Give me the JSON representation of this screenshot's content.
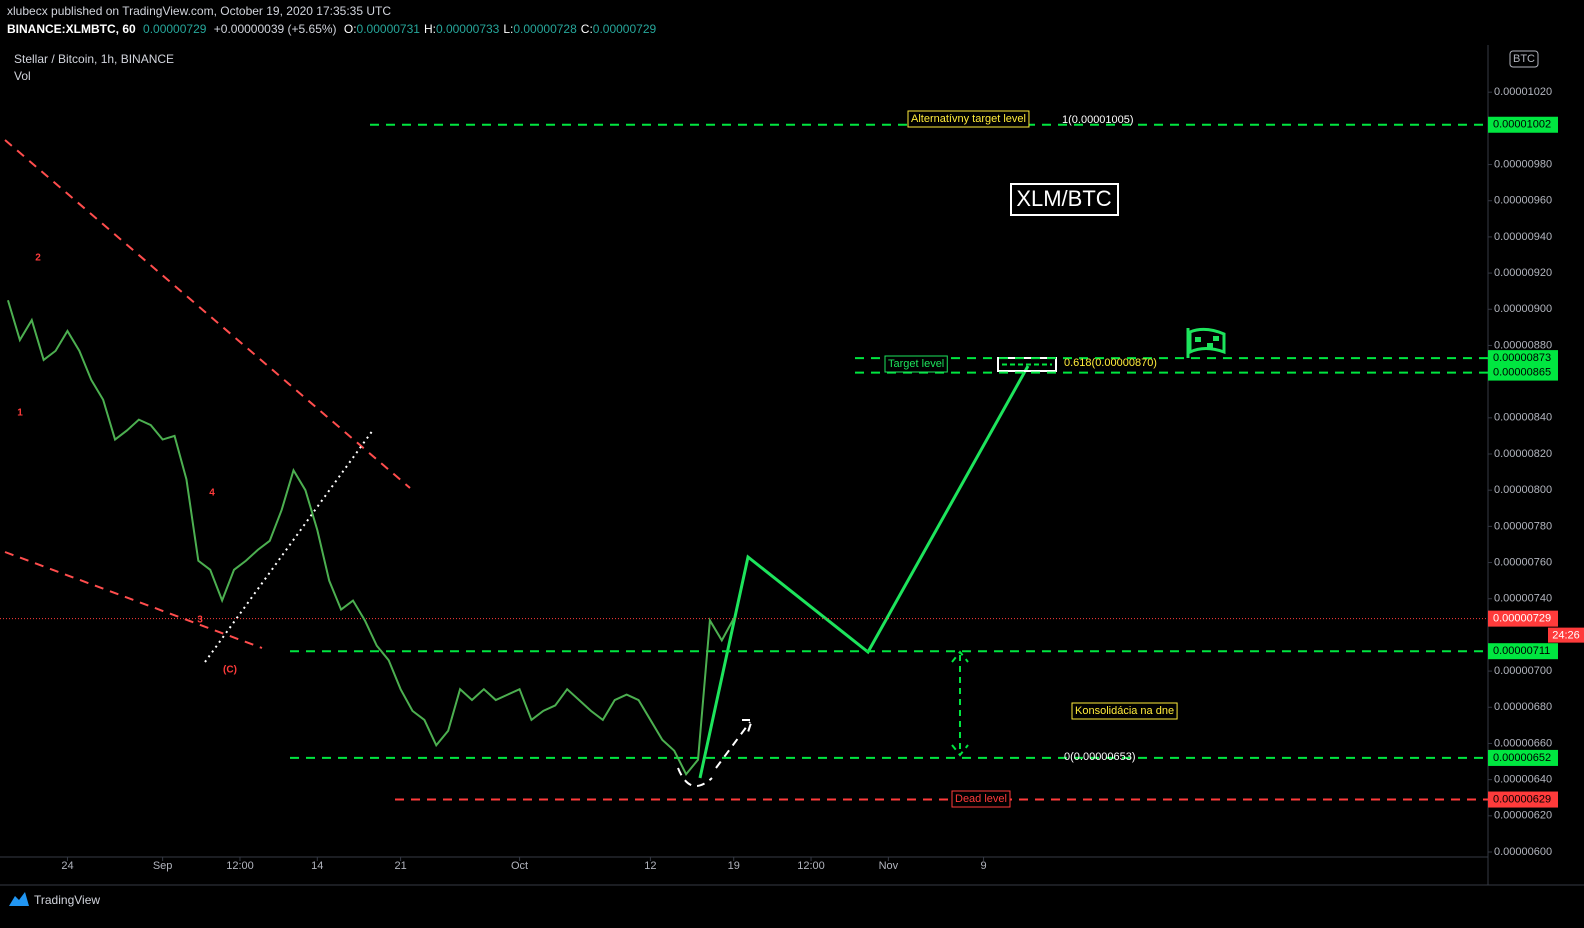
{
  "header": {
    "published": "xlubecx published on TradingView.com, October 19, 2020 17:35:35 UTC",
    "symbol": "BINANCE:XLMBTC, 60",
    "last": "0.00000729",
    "change": "+0.00000039 (+5.65%)",
    "ohlc": [
      {
        "label": "O:",
        "value": "0.00000731"
      },
      {
        "label": "H:",
        "value": "0.00000733"
      },
      {
        "label": "L:",
        "value": "0.00000728"
      },
      {
        "label": "C:",
        "value": "0.00000729"
      }
    ],
    "legend": "Stellar / Bitcoin, 1h, BINANCE",
    "volume": "Vol",
    "currency": "BTC",
    "brand": "TradingView"
  },
  "chart_data": {
    "type": "line",
    "color": "#4caf50",
    "x": [
      0,
      1,
      2,
      3,
      4,
      5,
      6,
      7,
      8,
      9,
      10,
      11,
      12,
      13,
      14,
      15,
      16,
      17,
      18,
      19,
      20,
      21,
      22,
      23,
      24,
      25,
      26,
      27,
      28,
      29,
      30,
      31,
      32,
      33,
      34,
      35,
      36,
      37,
      38,
      39,
      40,
      41,
      42,
      43,
      44,
      45,
      46,
      47,
      48,
      49,
      50,
      51,
      52,
      53,
      54,
      55,
      56,
      57,
      58,
      59,
      60,
      61
    ],
    "values": [
      9.05e-06,
      8.83e-06,
      8.94e-06,
      8.72e-06,
      8.77e-06,
      8.88e-06,
      8.77e-06,
      8.61e-06,
      8.5e-06,
      8.28e-06,
      8.33e-06,
      8.39e-06,
      8.36e-06,
      8.28e-06,
      8.3e-06,
      8.06e-06,
      7.61e-06,
      7.56e-06,
      7.39e-06,
      7.56e-06,
      7.61e-06,
      7.67e-06,
      7.72e-06,
      7.89e-06,
      8.11e-06,
      8e-06,
      7.78e-06,
      7.5e-06,
      7.34e-06,
      7.39e-06,
      7.28e-06,
      7.14e-06,
      7.06e-06,
      6.9e-06,
      6.78e-06,
      6.73e-06,
      6.59e-06,
      6.67e-06,
      6.9e-06,
      6.84e-06,
      6.9e-06,
      6.84e-06,
      6.87e-06,
      6.9e-06,
      6.73e-06,
      6.78e-06,
      6.81e-06,
      6.9e-06,
      6.84e-06,
      6.78e-06,
      6.73e-06,
      6.84e-06,
      6.87e-06,
      6.84e-06,
      6.73e-06,
      6.62e-06,
      6.56e-06,
      6.43e-06,
      6.51e-06,
      7.28e-06,
      7.17e-06,
      7.29e-06
    ],
    "xlim": [
      -0.67,
      124.4
    ],
    "xticks": [
      {
        "value": 5,
        "label": "24"
      },
      {
        "value": 13,
        "label": "Sep"
      },
      {
        "value": 19.5,
        "label": "12:00"
      },
      {
        "value": 26,
        "label": "14"
      },
      {
        "value": 33,
        "label": "21"
      },
      {
        "value": 43,
        "label": "Oct"
      },
      {
        "value": 54,
        "label": "12"
      },
      {
        "value": 61,
        "label": "19"
      },
      {
        "value": 67.5,
        "label": "12:00"
      },
      {
        "value": 74,
        "label": "Nov"
      },
      {
        "value": 82,
        "label": "9"
      }
    ],
    "ylim": [
      6e-06,
      1.04e-05
    ],
    "yticks": [
      {
        "value": 6e-06,
        "label": "0.00000600"
      },
      {
        "value": 6.2e-06,
        "label": "0.00000620"
      },
      {
        "value": 6.4e-06,
        "label": "0.00000640"
      },
      {
        "value": 6.6e-06,
        "label": "0.00000660"
      },
      {
        "value": 6.8e-06,
        "label": "0.00000680"
      },
      {
        "value": 7e-06,
        "label": "0.00000700"
      },
      {
        "value": 7.4e-06,
        "label": "0.00000740"
      },
      {
        "value": 7.6e-06,
        "label": "0.00000760"
      },
      {
        "value": 7.8e-06,
        "label": "0.00000780"
      },
      {
        "value": 8e-06,
        "label": "0.00000800"
      },
      {
        "value": 8.2e-06,
        "label": "0.00000820"
      },
      {
        "value": 8.4e-06,
        "label": "0.00000840"
      },
      {
        "value": 8.8e-06,
        "label": "0.00000880"
      },
      {
        "value": 9e-06,
        "label": "0.00000900"
      },
      {
        "value": 9.2e-06,
        "label": "0.00000920"
      },
      {
        "value": 9.4e-06,
        "label": "0.00000940"
      },
      {
        "value": 9.6e-06,
        "label": "0.00000960"
      },
      {
        "value": 9.8e-06,
        "label": "0.00000980"
      },
      {
        "value": 1.02e-05,
        "label": "0.00001020"
      }
    ],
    "levels": [
      {
        "value": 1.002e-05,
        "color": "#00e640"
      },
      {
        "value": 8.73e-06,
        "color": "#00e640"
      },
      {
        "value": 8.65e-06,
        "color": "#00e640"
      },
      {
        "value": 7.11e-06,
        "color": "#00e640"
      },
      {
        "value": 6.52e-06,
        "color": "#00e640"
      },
      {
        "value": 6.29e-06,
        "color": "#ff3b3b"
      }
    ],
    "last_price": 7.29e-06,
    "countdown": "24:26",
    "annotations": [
      "Alternatívny target level",
      "Target level",
      "Konsolidácia na dne",
      "Dead level",
      "XLM/BTC"
    ],
    "fib_labels": [
      "1(0.00001005)",
      "0.618(0.00000870)",
      "0(0.00000653)"
    ],
    "wave_labels": [
      "2",
      "1",
      "4",
      "3",
      "(C)"
    ]
  }
}
